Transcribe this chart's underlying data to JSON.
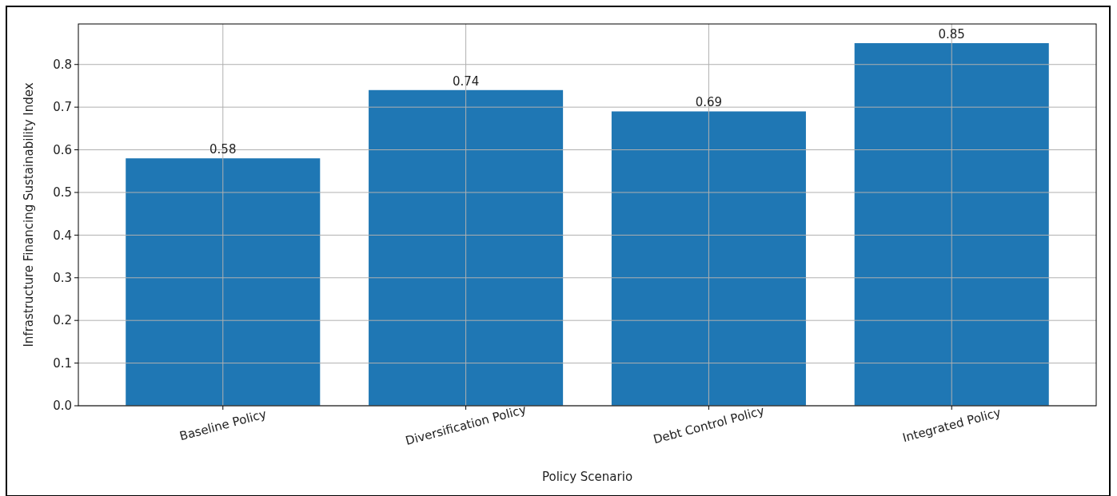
{
  "chart_data": {
    "type": "bar",
    "xlabel": "Policy Scenario",
    "ylabel": "Infrastructure Financing Sustainability Index",
    "categories": [
      "Baseline Policy",
      "Diversification Policy",
      "Debt Control Policy",
      "Integrated Policy"
    ],
    "values": [
      0.58,
      0.74,
      0.69,
      0.85
    ],
    "color": "#1f77b4",
    "data_labels": true,
    "ylim": [
      0,
      0.895
    ],
    "yticks": [
      {
        "value": 0,
        "label": "0.0"
      },
      {
        "value": 0.1,
        "label": "0.1"
      },
      {
        "value": 0.2,
        "label": "0.2"
      },
      {
        "value": 0.3,
        "label": "0.3"
      },
      {
        "value": 0.4,
        "label": "0.4"
      },
      {
        "value": 0.5,
        "label": "0.5"
      },
      {
        "value": 0.6,
        "label": "0.6"
      },
      {
        "value": 0.7,
        "label": "0.7"
      },
      {
        "value": 0.8,
        "label": "0.8"
      }
    ],
    "grid": true
  }
}
